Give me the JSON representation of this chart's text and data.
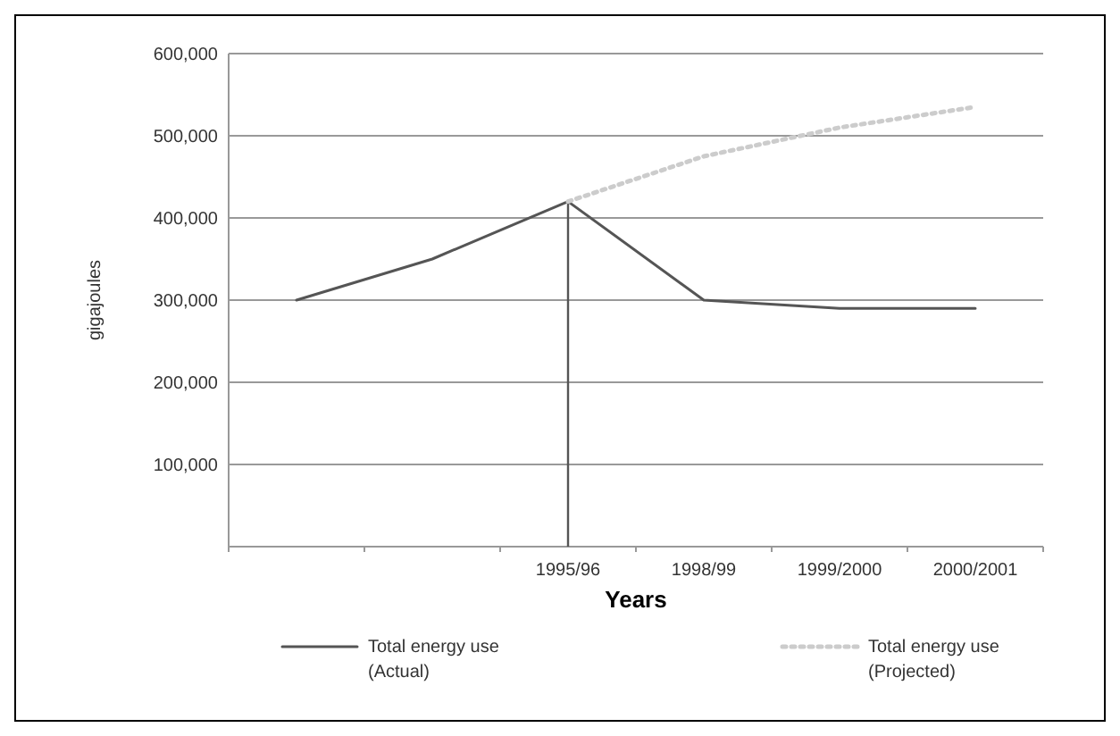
{
  "chart_data": {
    "type": "line",
    "xlabel": "Years",
    "ylabel": "gigajoules",
    "categories": [
      null,
      null,
      "1995/96",
      "1998/99",
      "1999/2000",
      "2000/2001"
    ],
    "series": [
      {
        "name": "Total energy use (Actual)",
        "color": "#555555",
        "values": [
          300000,
          350000,
          420000,
          300000,
          290000,
          290000
        ],
        "line_style": "solid"
      },
      {
        "name": "Total energy use (Projected)",
        "color": "#cccccc",
        "values": [
          null,
          null,
          420000,
          475000,
          510000,
          535000
        ],
        "line_style": "dotted"
      }
    ],
    "ylim": [
      0,
      600000
    ],
    "yticks": [
      {
        "value": 100000,
        "label": "100,000"
      },
      {
        "value": 200000,
        "label": "200,000"
      },
      {
        "value": 300000,
        "label": "300,000"
      },
      {
        "value": 400000,
        "label": "400,000"
      },
      {
        "value": 500000,
        "label": "500,000"
      },
      {
        "value": 600000,
        "label": "600,000"
      }
    ],
    "ref_lines": [
      {
        "axis": "x",
        "value": "1995/96",
        "color": "#555555"
      }
    ],
    "grid": "y",
    "legend": "bottom",
    "marker": "none"
  }
}
